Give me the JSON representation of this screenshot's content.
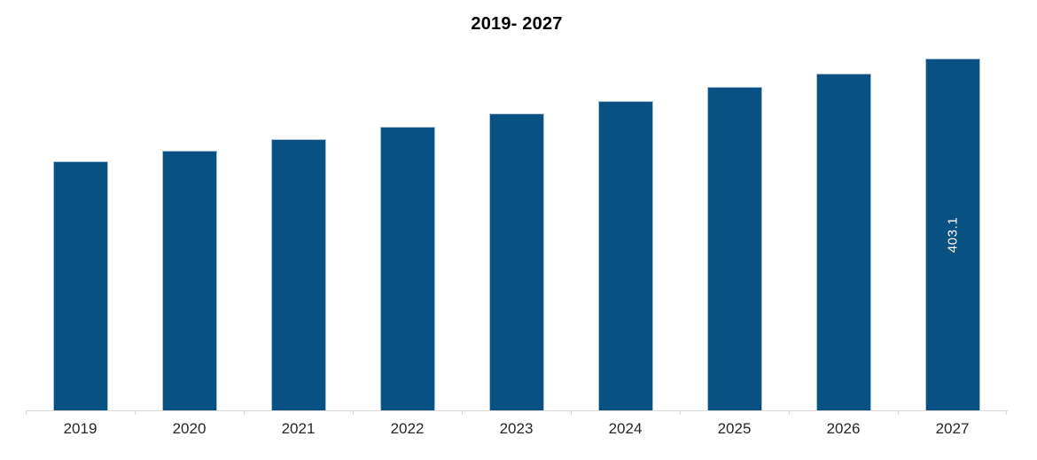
{
  "title": "2019- 2027",
  "colors": {
    "background": "#ffffff",
    "bar_fill": "#0a5183",
    "bar_border": "#a9c2d1",
    "axis_line": "#d9d9d9",
    "title_text": "#000000",
    "axis_label_text": "#262626",
    "data_label_text": "#ffffff"
  },
  "chart_data": {
    "type": "bar",
    "title": "2019- 2027",
    "categories": [
      "2019",
      "2020",
      "2021",
      "2022",
      "2023",
      "2024",
      "2025",
      "2026",
      "2027"
    ],
    "values": [
      285.3,
      297.5,
      310.7,
      324.9,
      340.1,
      354.4,
      370.6,
      385.8,
      403.1
    ],
    "xlabel": "",
    "ylabel": "",
    "ylim": [
      0,
      410
    ],
    "grid": false,
    "legend": false,
    "bar_color": "#0a5183",
    "bar_border_color": "#a9c2d1",
    "axis_color": "#d9d9d9",
    "data_labels": [
      {
        "category": "2027",
        "text": "403.1",
        "color": "#ffffff",
        "rotation_deg": -90
      }
    ]
  }
}
